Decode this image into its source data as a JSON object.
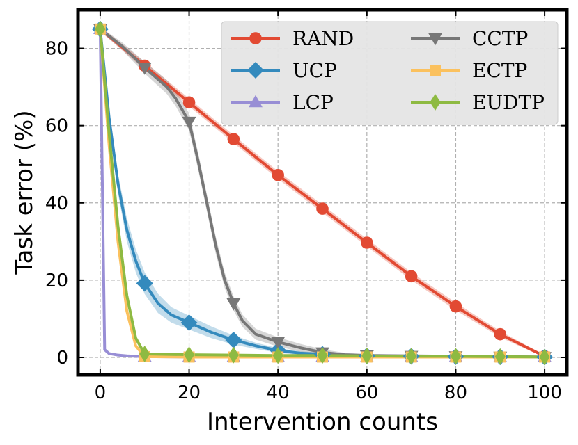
{
  "chart_data": {
    "type": "line",
    "xlabel": "Intervention counts",
    "ylabel": "Task error (%)",
    "xlim": [
      -5,
      105
    ],
    "ylim": [
      -4.5,
      90
    ],
    "xticks": [
      0,
      20,
      40,
      60,
      80,
      100
    ],
    "yticks": [
      0,
      20,
      40,
      60,
      80
    ],
    "grid": true,
    "legend_position": "top-right",
    "legend_columns": 2,
    "series": [
      {
        "name": "RAND",
        "color": "#e24a33",
        "marker": "circle",
        "band": true,
        "x": [
          0,
          10,
          20,
          30,
          40,
          50,
          60,
          70,
          80,
          90,
          100
        ],
        "y": [
          85,
          75.5,
          66,
          56.5,
          47.2,
          38.5,
          29.7,
          21,
          13.2,
          6,
          0.3
        ],
        "band_width": [
          0.6,
          1,
          1,
          1,
          1,
          1,
          1,
          1,
          1,
          0.8,
          0.3
        ]
      },
      {
        "name": "UCP",
        "color": "#348abd",
        "marker": "diamond",
        "band": true,
        "x": [
          0,
          2,
          4,
          6,
          8,
          10,
          13,
          16,
          20,
          25,
          30,
          35,
          40,
          45,
          50,
          60,
          70,
          80,
          90,
          100
        ],
        "y": [
          85,
          62,
          45,
          33,
          25,
          19.2,
          14,
          11,
          9,
          6.5,
          4.5,
          3,
          1.8,
          1.1,
          0.8,
          0.4,
          0.3,
          0.2,
          0.15,
          0.1
        ],
        "marker_x": [
          0,
          10,
          20,
          30,
          40,
          50,
          60,
          70,
          80,
          90,
          100
        ],
        "band_width": [
          0.6,
          1.5,
          2.5,
          3,
          3,
          2.8,
          2.5,
          2,
          1.8,
          1.5,
          1.2,
          0.8,
          0.6,
          0.5,
          0.4,
          0.3,
          0.2,
          0.2,
          0.1,
          0.1
        ]
      },
      {
        "name": "LCP",
        "color": "#988ed5",
        "marker": "triangle-up",
        "band": false,
        "x": [
          0,
          1,
          2,
          4,
          6,
          8,
          10,
          20,
          30,
          40,
          50,
          60,
          70,
          80,
          90,
          100
        ],
        "y": [
          85,
          2,
          1,
          0.6,
          0.4,
          0.3,
          0.2,
          0.1,
          0.1,
          0.1,
          0.1,
          0.1,
          0.1,
          0.1,
          0.1,
          0.1
        ],
        "marker_x": [
          0,
          10,
          20,
          30,
          40,
          50,
          60,
          70,
          80,
          90,
          100
        ]
      },
      {
        "name": "CCTP",
        "color": "#777777",
        "marker": "triangle-down",
        "band": true,
        "x": [
          0,
          5,
          10,
          15,
          17,
          20,
          22,
          24,
          26,
          28,
          30,
          32,
          35,
          40,
          45,
          50,
          55,
          60,
          70,
          80,
          90,
          100
        ],
        "y": [
          85,
          80.5,
          75,
          70,
          67,
          61,
          51,
          40,
          29,
          20,
          14,
          9.5,
          6,
          4,
          2.5,
          1.3,
          0.7,
          0.5,
          0.4,
          0.3,
          0.2,
          0.1
        ],
        "marker_x": [
          0,
          10,
          20,
          30,
          40,
          50,
          60,
          70,
          80,
          90,
          100
        ],
        "band_width": [
          0.5,
          1,
          1.5,
          1.8,
          2,
          2.2,
          2.2,
          2.2,
          2.2,
          2,
          1.8,
          1.6,
          1.4,
          1.2,
          1,
          0.8,
          0.5,
          0.4,
          0.3,
          0.2,
          0.1,
          0.1
        ]
      },
      {
        "name": "ECTP",
        "color": "#fbc15e",
        "marker": "square",
        "band": false,
        "x": [
          0,
          2,
          4,
          6,
          8,
          10,
          20,
          30,
          40,
          50,
          60,
          70,
          80,
          90,
          100
        ],
        "y": [
          85,
          55,
          30,
          12,
          3,
          0.2,
          0.1,
          0.1,
          0.1,
          0.1,
          0.1,
          0.1,
          0.1,
          0.1,
          0.1
        ],
        "marker_x": [
          0,
          10,
          20,
          30,
          40,
          50,
          60,
          70,
          80,
          90,
          100
        ]
      },
      {
        "name": "EUDTP",
        "color": "#8eba42",
        "marker": "diamond-thin",
        "band": false,
        "x": [
          0,
          2,
          4,
          6,
          8,
          10,
          20,
          30,
          40,
          50,
          60,
          70,
          80,
          90,
          100
        ],
        "y": [
          85,
          58,
          34,
          16,
          5,
          0.9,
          0.7,
          0.6,
          0.5,
          0.5,
          0.4,
          0.3,
          0.3,
          0.2,
          0.1
        ],
        "marker_x": [
          0,
          10,
          20,
          30,
          40,
          50,
          60,
          70,
          80,
          90,
          100
        ]
      }
    ]
  }
}
